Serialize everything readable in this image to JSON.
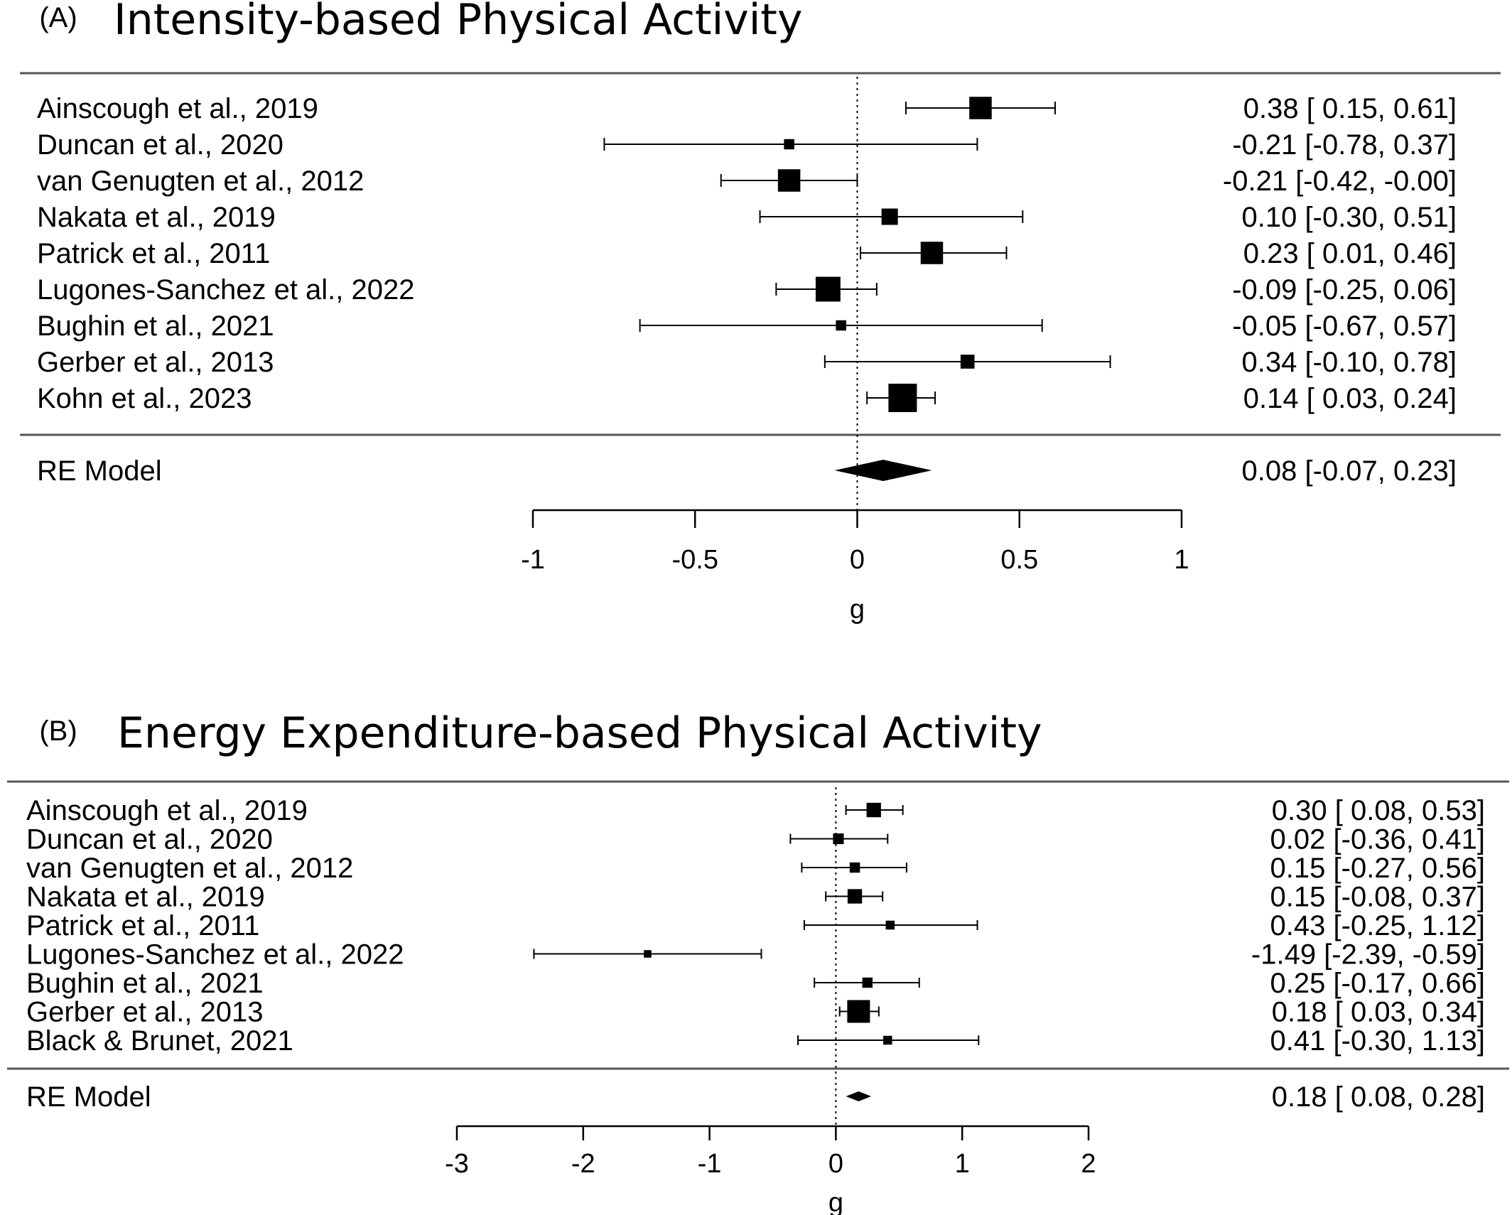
{
  "chart_data": [
    {
      "type": "forest",
      "panel": "(A)",
      "title": "Intensity-based Physical Activity",
      "xlabel": "g",
      "xlim": [
        -1,
        1
      ],
      "ticks": [
        -1,
        -0.5,
        0,
        0.5,
        1
      ],
      "tick_labels": [
        "-1",
        "-0.5",
        "0",
        "0.5",
        "1"
      ],
      "reference_line": 0,
      "studies": [
        {
          "label": "Ainscough et al., 2019",
          "est": 0.38,
          "lo": 0.15,
          "hi": 0.61,
          "text": "0.38 [ 0.15,  0.61]",
          "weight": 3
        },
        {
          "label": "Duncan et al., 2020",
          "est": -0.21,
          "lo": -0.78,
          "hi": 0.37,
          "text": "-0.21 [-0.78,  0.37]",
          "weight": 1
        },
        {
          "label": "van Genugten et al., 2012",
          "est": -0.21,
          "lo": -0.42,
          "hi": -0.0,
          "text": "-0.21 [-0.42, -0.00]",
          "weight": 3
        },
        {
          "label": "Nakata et al., 2019",
          "est": 0.1,
          "lo": -0.3,
          "hi": 0.51,
          "text": "0.10 [-0.30,  0.51]",
          "weight": 2
        },
        {
          "label": "Patrick et al., 2011",
          "est": 0.23,
          "lo": 0.01,
          "hi": 0.46,
          "text": "0.23 [ 0.01,  0.46]",
          "weight": 3
        },
        {
          "label": "Lugones-Sanchez et al., 2022",
          "est": -0.09,
          "lo": -0.25,
          "hi": 0.06,
          "text": "-0.09 [-0.25,  0.06]",
          "weight": 3.4
        },
        {
          "label": "Bughin et al., 2021",
          "est": -0.05,
          "lo": -0.67,
          "hi": 0.57,
          "text": "-0.05 [-0.67,  0.57]",
          "weight": 1
        },
        {
          "label": "Gerber et al., 2013",
          "est": 0.34,
          "lo": -0.1,
          "hi": 0.78,
          "text": "0.34 [-0.10,  0.78]",
          "weight": 1.6
        },
        {
          "label": "Kohn et al., 2023",
          "est": 0.14,
          "lo": 0.03,
          "hi": 0.24,
          "text": "0.14 [ 0.03,  0.24]",
          "weight": 4
        }
      ],
      "summary": {
        "label": "RE Model",
        "est": 0.08,
        "lo": -0.07,
        "hi": 0.23,
        "text": "0.08 [-0.07,  0.23]"
      }
    },
    {
      "type": "forest",
      "panel": "(B)",
      "title": "Energy Expenditure-based Physical Activity",
      "xlabel": "g",
      "xlim": [
        -3,
        2
      ],
      "ticks": [
        -3,
        -2,
        -1,
        0,
        1,
        2
      ],
      "tick_labels": [
        "-3",
        "-2",
        "-1",
        "0",
        "1",
        "2"
      ],
      "reference_line": 0,
      "studies": [
        {
          "label": "Ainscough et al., 2019",
          "est": 0.3,
          "lo": 0.08,
          "hi": 0.53,
          "text": "0.30 [ 0.08,  0.53]",
          "weight": 2.2
        },
        {
          "label": "Duncan et al., 2020",
          "est": 0.02,
          "lo": -0.36,
          "hi": 0.41,
          "text": "0.02 [-0.36,  0.41]",
          "weight": 1.4
        },
        {
          "label": "van Genugten et al., 2012",
          "est": 0.15,
          "lo": -0.27,
          "hi": 0.56,
          "text": "0.15 [-0.27,  0.56]",
          "weight": 1.3
        },
        {
          "label": "Nakata et al., 2019",
          "est": 0.15,
          "lo": -0.08,
          "hi": 0.37,
          "text": "0.15 [-0.08,  0.37]",
          "weight": 2.2
        },
        {
          "label": "Patrick et al., 2011",
          "est": 0.43,
          "lo": -0.25,
          "hi": 1.12,
          "text": "0.43 [-0.25,  1.12]",
          "weight": 1
        },
        {
          "label": "Lugones-Sanchez et al., 2022",
          "est": -1.49,
          "lo": -2.39,
          "hi": -0.59,
          "text": "-1.49 [-2.39, -0.59]",
          "weight": 0.7
        },
        {
          "label": "Bughin et al., 2021",
          "est": 0.25,
          "lo": -0.17,
          "hi": 0.66,
          "text": "0.25 [-0.17,  0.66]",
          "weight": 1.3
        },
        {
          "label": "Gerber et al., 2013",
          "est": 0.18,
          "lo": 0.03,
          "hi": 0.34,
          "text": "0.18 [ 0.03,  0.34]",
          "weight": 4
        },
        {
          "label": "Black & Brunet, 2021",
          "est": 0.41,
          "lo": -0.3,
          "hi": 1.13,
          "text": "0.41 [-0.30,  1.13]",
          "weight": 1
        }
      ],
      "summary": {
        "label": "RE Model",
        "est": 0.18,
        "lo": 0.08,
        "hi": 0.28,
        "text": "0.18 [ 0.08,  0.28]"
      }
    }
  ]
}
